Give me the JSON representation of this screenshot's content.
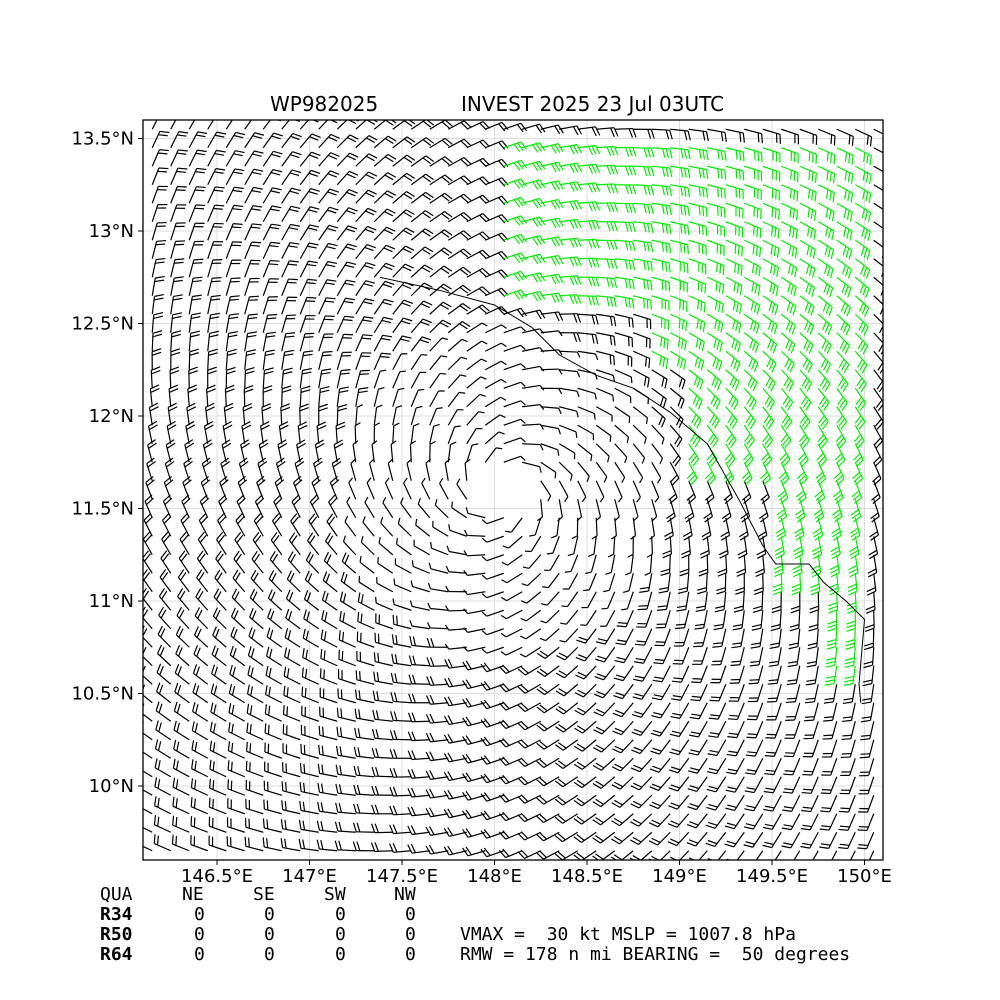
{
  "header": {
    "storm_id": "WP982025",
    "storm_title": "INVEST 2025 23 Jul 03UTC"
  },
  "chart_data": {
    "type": "wind-barb-field",
    "x_ticks": [
      "146.5°E",
      "147°E",
      "147.5°E",
      "148°E",
      "148.5°E",
      "149°E",
      "149.5°E",
      "150°E"
    ],
    "x_tick_values": [
      146.5,
      147.0,
      147.5,
      148.0,
      148.5,
      149.0,
      149.5,
      150.0
    ],
    "y_ticks": [
      "13.5°N",
      "13°N",
      "12.5°N",
      "12°N",
      "11.5°N",
      "11°N",
      "10.5°N",
      "10°N"
    ],
    "y_tick_values": [
      13.5,
      13.0,
      12.5,
      12.0,
      11.5,
      11.0,
      10.5,
      10.0
    ],
    "xlim": [
      146.1,
      150.1
    ],
    "ylim": [
      9.6,
      13.6
    ],
    "grid": true,
    "center": {
      "lon": 148.05,
      "lat": 11.6
    },
    "barb_spacing_deg": 0.1,
    "colors": {
      "barb_default": "#000000",
      "barb_strong": "#00ee00",
      "coastline": "#000000"
    }
  },
  "table": {
    "headers": [
      "QUA",
      "NE",
      "SE",
      "SW",
      "NW"
    ],
    "rows": [
      {
        "label": "R34",
        "values": [
          "0",
          "0",
          "0",
          "0"
        ]
      },
      {
        "label": "R50",
        "values": [
          "0",
          "0",
          "0",
          "0"
        ]
      },
      {
        "label": "R64",
        "values": [
          "0",
          "0",
          "0",
          "0"
        ]
      }
    ]
  },
  "info": {
    "line1": "VMAX =  30 kt MSLP = 1007.8 hPa",
    "line2": "RMW = 178 n mi BEARING =  50 degrees"
  }
}
